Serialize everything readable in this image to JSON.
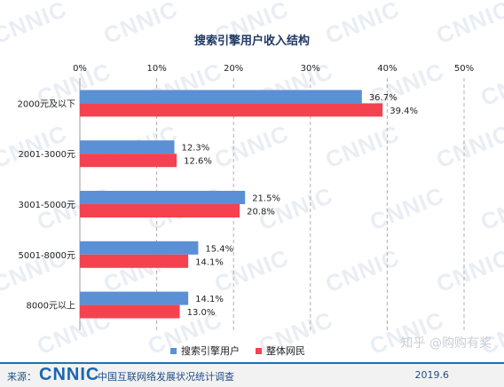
{
  "chart_data": {
    "type": "bar",
    "orientation": "horizontal",
    "title": "搜索引擎用户收入结构",
    "categories": [
      "2000元及以下",
      "2001-3000元",
      "3001-5000元",
      "5001-8000元",
      "8000元以上"
    ],
    "series": [
      {
        "name": "搜索引擎用户",
        "color": "#5b8fd6",
        "values": [
          36.7,
          12.3,
          21.5,
          15.4,
          14.1
        ],
        "labels": [
          "36.7%",
          "12.3%",
          "21.5%",
          "15.4%",
          "14.1%"
        ]
      },
      {
        "name": "整体网民",
        "color": "#f4424f",
        "values": [
          39.4,
          12.6,
          20.8,
          14.1,
          13.0
        ],
        "labels": [
          "39.4%",
          "12.6%",
          "20.8%",
          "14.1%",
          "13.0%"
        ]
      }
    ],
    "xlim": [
      0,
      50
    ],
    "xticks": [
      "0%",
      "10%",
      "20%",
      "30%",
      "40%",
      "50%"
    ],
    "grid": "vertical-dashed",
    "legend_position": "bottom-center"
  },
  "footer": {
    "source_label": "来源：",
    "logo_text": "CNNIC",
    "org": "中国互联网络发展状况统计调查",
    "date": "2019.6"
  },
  "watermark": {
    "text": "CNNIC",
    "zhihu": "知乎 @购购有奖"
  }
}
